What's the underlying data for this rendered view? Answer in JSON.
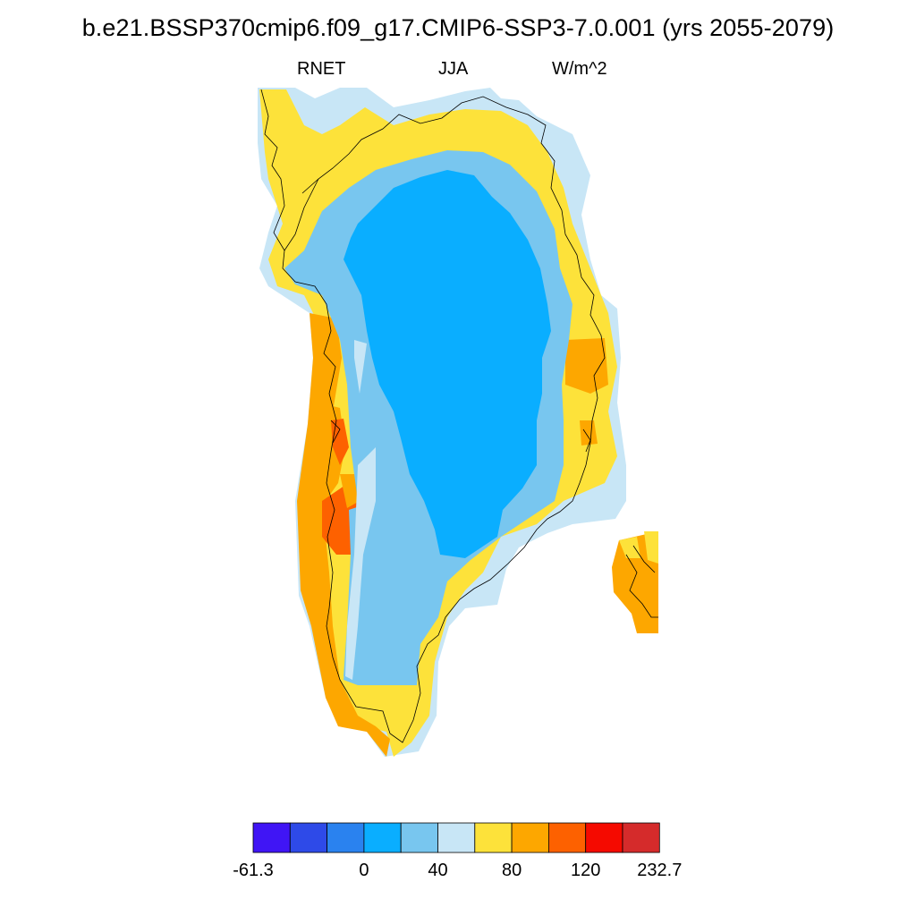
{
  "title": "b.e21.BSSP370cmip6.f09_g17.CMIP6-SSP3-7.0.001 (yrs 2055-2079)",
  "variable": "RNET",
  "season": "JJA",
  "units": "W/m^2",
  "colors": {
    "c1": "#4015f5",
    "c2": "#2e4ae8",
    "c3": "#2a82ef",
    "c4": "#0aaeff",
    "c5": "#78c6ef",
    "c6": "#c8e6f6",
    "c7": "#fde23a",
    "c8": "#fda700",
    "c9": "#fd6100",
    "c10": "#f50a00",
    "c11": "#d52b2b"
  },
  "colorbar": {
    "swatches": [
      "c1",
      "c2",
      "c3",
      "c4",
      "c5",
      "c6",
      "c7",
      "c8",
      "c9",
      "c10",
      "c11"
    ],
    "labels": [
      {
        "text": "-61.3",
        "boundary": 0
      },
      {
        "text": "0",
        "boundary": 3
      },
      {
        "text": "40",
        "boundary": 5
      },
      {
        "text": "80",
        "boundary": 7
      },
      {
        "text": "120",
        "boundary": 9
      },
      {
        "text": "232.7",
        "boundary": 11
      }
    ]
  }
}
